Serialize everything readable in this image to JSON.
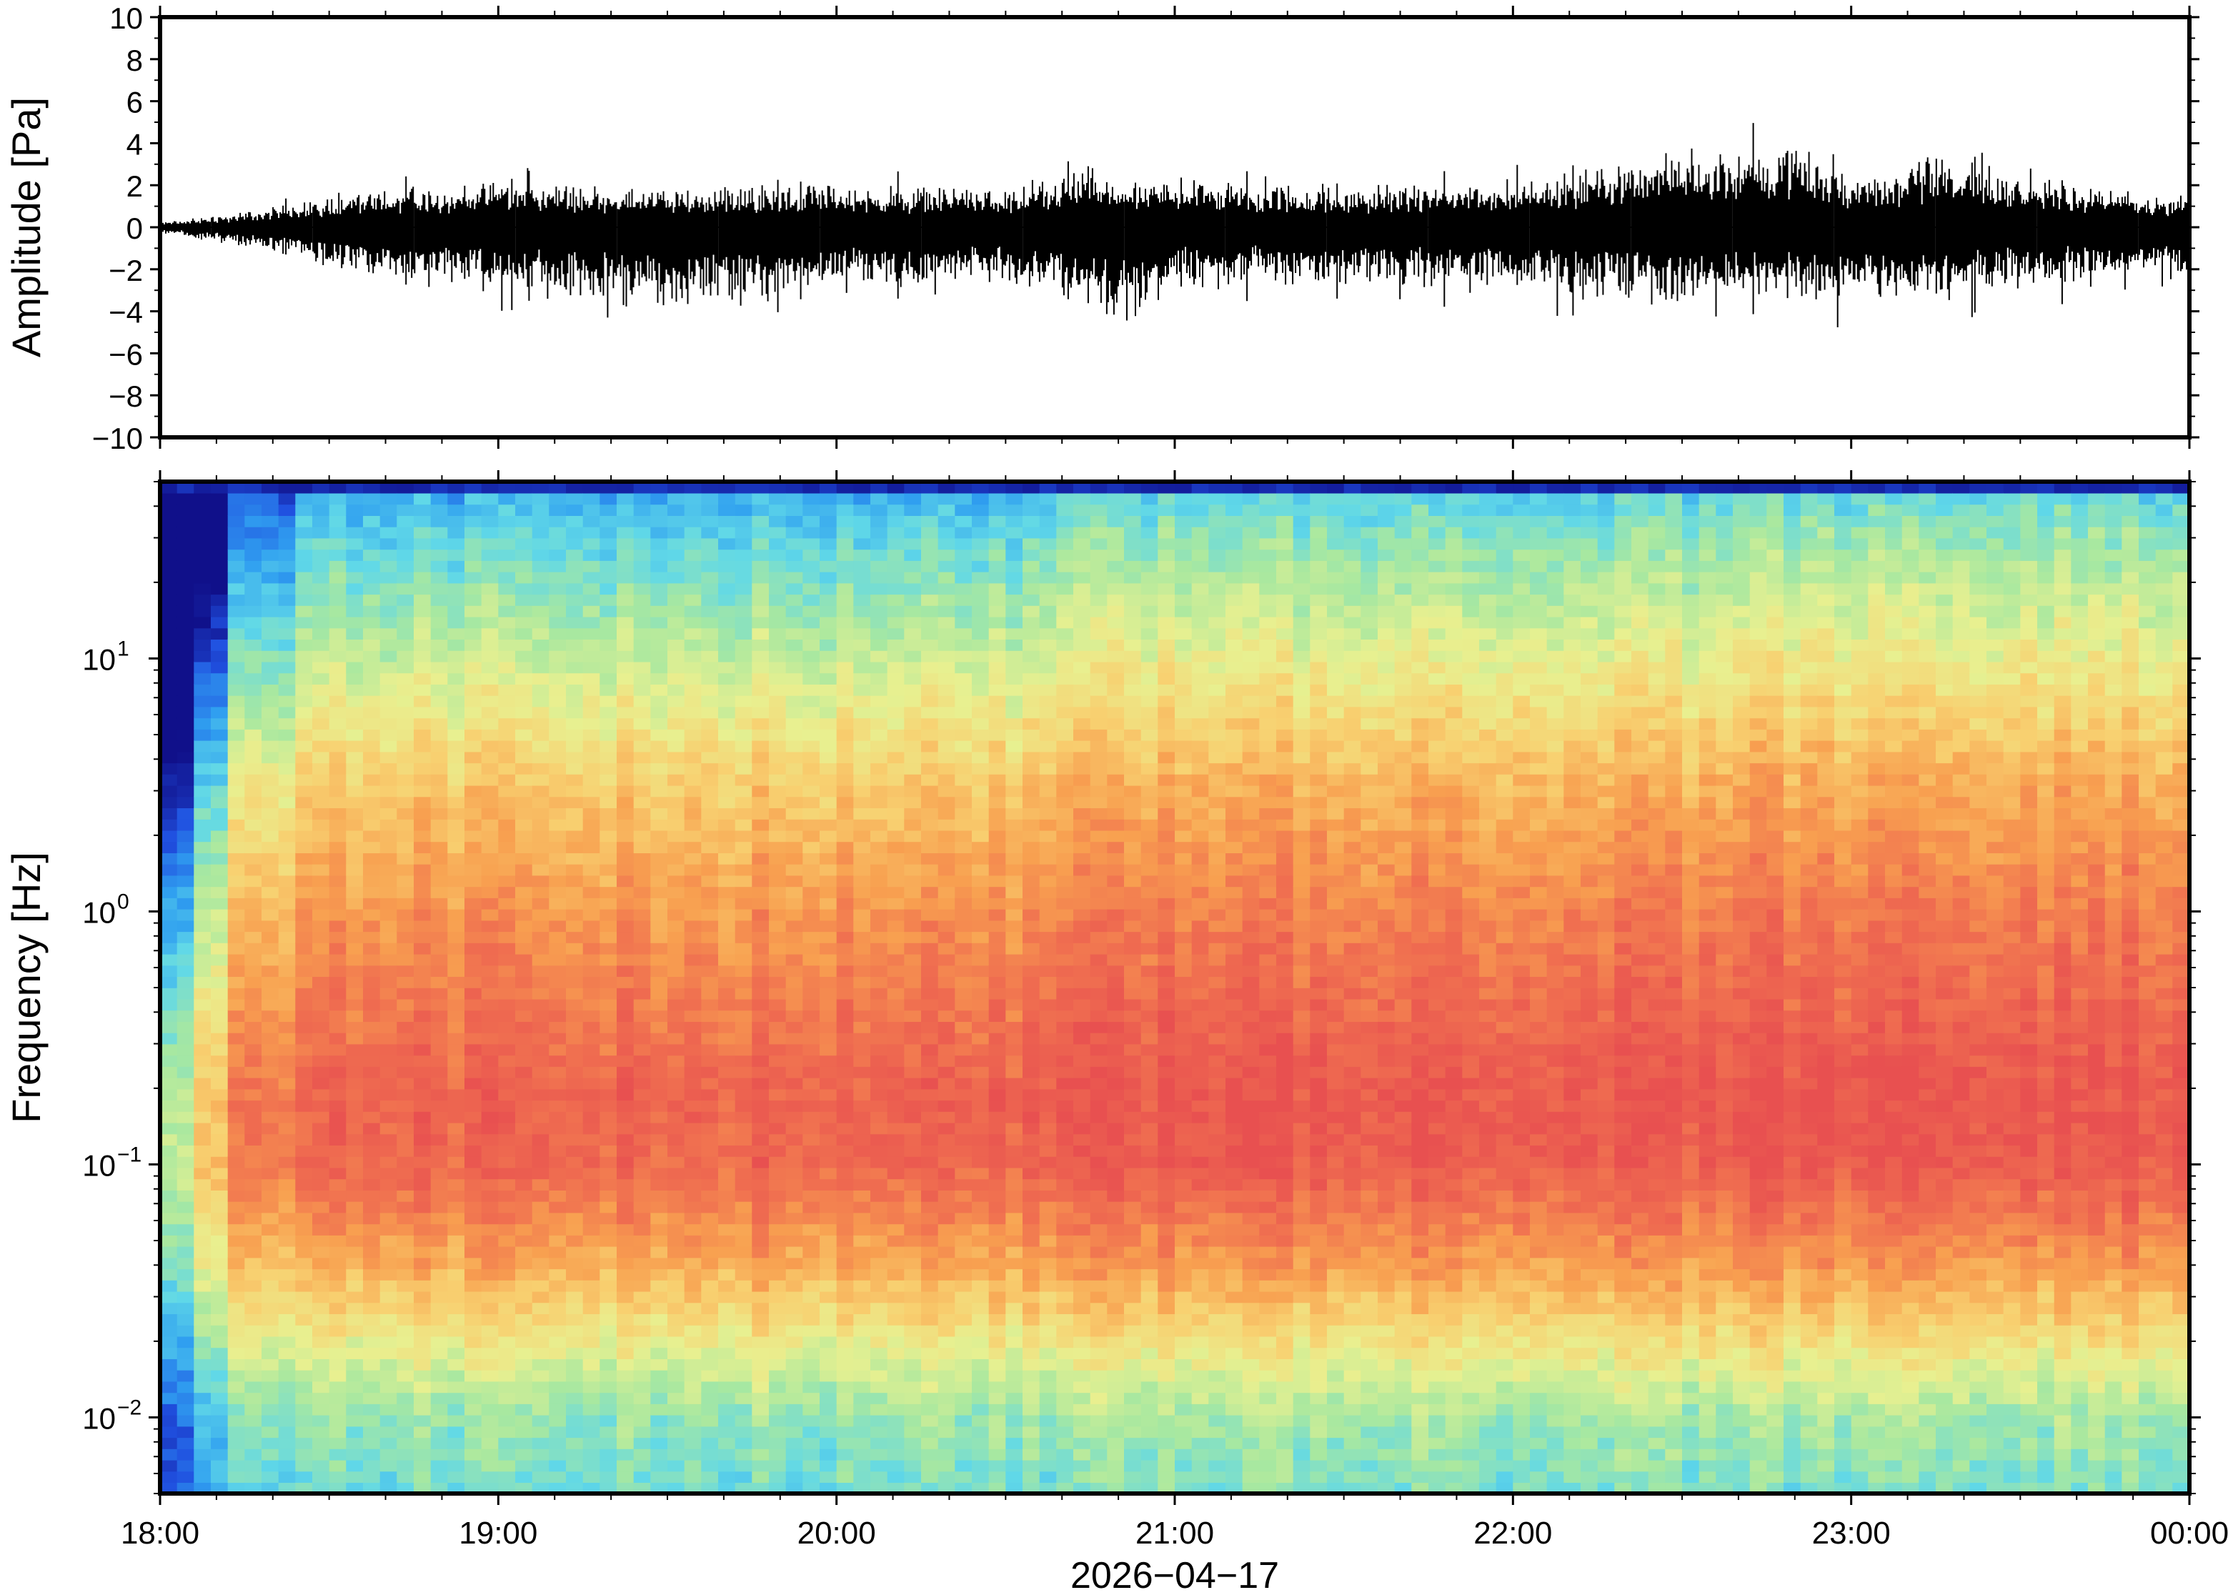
{
  "chart_data": [
    {
      "type": "line",
      "title": "",
      "ylabel": "Amplitude [Pa]",
      "xlabel": "",
      "ylim": [
        -10,
        10
      ],
      "y_ticks": [
        10,
        8,
        6,
        4,
        2,
        0,
        -2,
        -4,
        -6,
        -8,
        -10
      ],
      "y_tick_labels": [
        "10",
        "8",
        "6",
        "4",
        "2",
        "0",
        "−2",
        "−4",
        "−6",
        "−8",
        "−10"
      ],
      "x_range": [
        "18:00",
        "00:00"
      ],
      "series": [
        {
          "color": "#000000",
          "envelope_hourly": [
            {
              "x": "18:00",
              "max": 0.3,
              "min": -0.4
            },
            {
              "x": "18:15",
              "max": 1.0,
              "min": -1.2
            },
            {
              "x": "18:30",
              "max": 2.0,
              "min": -2.5
            },
            {
              "x": "19:00",
              "max": 3.0,
              "min": -4.0
            },
            {
              "x": "19:30",
              "max": 2.5,
              "min": -5.5
            },
            {
              "x": "20:00",
              "max": 2.8,
              "min": -4.0
            },
            {
              "x": "20:30",
              "max": 2.5,
              "min": -3.5
            },
            {
              "x": "20:45",
              "max": 3.8,
              "min": -5.0
            },
            {
              "x": "20:50",
              "max": 3.0,
              "min": -6.2
            },
            {
              "x": "21:00",
              "max": 3.0,
              "min": -4.0
            },
            {
              "x": "21:30",
              "max": 2.5,
              "min": -3.5
            },
            {
              "x": "22:00",
              "max": 3.0,
              "min": -4.0
            },
            {
              "x": "22:35",
              "max": 5.0,
              "min": -5.0
            },
            {
              "x": "22:50",
              "max": 5.4,
              "min": -4.5
            },
            {
              "x": "23:00",
              "max": 3.0,
              "min": -5.0
            },
            {
              "x": "23:15",
              "max": 4.8,
              "min": -4.5
            },
            {
              "x": "23:30",
              "max": 3.0,
              "min": -4.0
            },
            {
              "x": "00:00",
              "max": 2.0,
              "min": -3.5
            }
          ]
        }
      ]
    },
    {
      "type": "heatmap",
      "title": "",
      "ylabel": "Frequency [Hz]",
      "xlabel": "2026−04−17",
      "y_scale": "log",
      "ylim": [
        0.005,
        50
      ],
      "y_ticks": [
        0.01,
        0.1,
        1,
        10
      ],
      "y_tick_labels": [
        {
          "base": "10",
          "exp": "−2"
        },
        {
          "base": "10",
          "exp": "−1"
        },
        {
          "base": "10",
          "exp": "0"
        },
        {
          "base": "10",
          "exp": "1"
        }
      ],
      "x_ticks": [
        "18:00",
        "19:00",
        "20:00",
        "21:00",
        "22:00",
        "23:00",
        "00:00"
      ],
      "colormap": "spectral (blue = low power, red = high power)",
      "colors": [
        "#10108a",
        "#2050e0",
        "#30a0f0",
        "#60d8e8",
        "#a8e8a0",
        "#e8f090",
        "#f8d070",
        "#f8a050",
        "#f07050",
        "#e85050"
      ],
      "features": [
        {
          "time": "18:00–18:12",
          "note": "dark blue low power at all frequencies"
        },
        {
          "time": "20:37–22:37",
          "note": "elevated power band"
        },
        {
          "time": "22:37–00:00",
          "note": "high power above 1 Hz"
        }
      ],
      "power_profile_by_frequency": [
        {
          "freq_hz": 40,
          "level": "light blue"
        },
        {
          "freq_hz": 10,
          "level": "cyan-green"
        },
        {
          "freq_hz": 3,
          "level": "yellow"
        },
        {
          "freq_hz": 1,
          "level": "orange"
        },
        {
          "freq_hz": 0.2,
          "level": "red"
        },
        {
          "freq_hz": 0.1,
          "level": "red"
        },
        {
          "freq_hz": 0.03,
          "level": "orange-yellow"
        },
        {
          "freq_hz": 0.01,
          "level": "green"
        },
        {
          "freq_hz": 0.006,
          "level": "cyan"
        }
      ]
    }
  ]
}
